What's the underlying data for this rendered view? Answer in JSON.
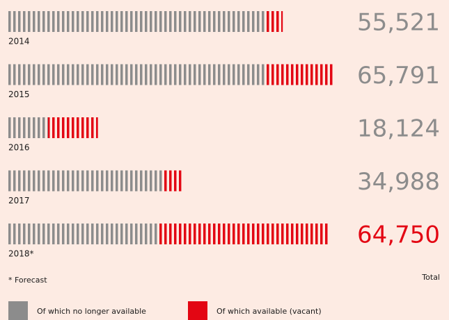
{
  "chart_data": {
    "type": "stacked-tick-bar",
    "categories": [
      "2014",
      "2015",
      "2016",
      "2017",
      "2018*"
    ],
    "series": [
      {
        "name": "Of which no longer available",
        "color": "#8c8c8c",
        "values": [
          52000,
          52000,
          8000,
          31500,
          30500
        ]
      },
      {
        "name": "Of which available (vacant)",
        "color": "#e30613",
        "values": [
          3521,
          13791,
          10124,
          3488,
          34250
        ]
      }
    ],
    "totals": {
      "values": [
        55521,
        65791,
        18124,
        34988,
        64750
      ],
      "value_labels": [
        "55,521",
        "65,791",
        "18,124",
        "34,988",
        "64,750"
      ],
      "colors": [
        "#8c8c8c",
        "#8c8c8c",
        "#8c8c8c",
        "#8c8c8c",
        "#e30613"
      ]
    },
    "xlim": [
      0,
      70000
    ],
    "total_header": "Total",
    "footnote": "* Forecast"
  }
}
